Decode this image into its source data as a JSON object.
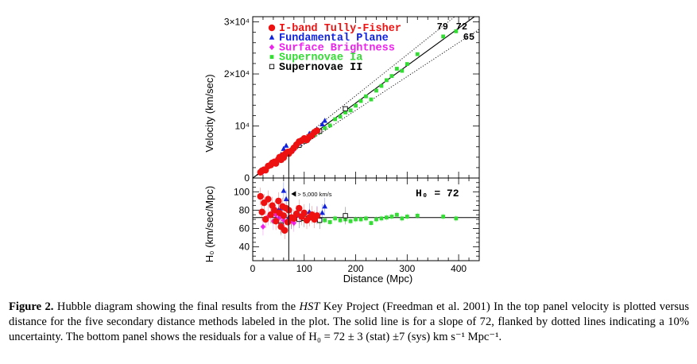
{
  "chart_data": [
    {
      "type": "scatter",
      "panel": "top",
      "xlabel": "",
      "ylabel": "Velocity (km/sec)",
      "xlim": [
        0,
        440
      ],
      "ylim": [
        0,
        31000
      ],
      "yticks": [
        {
          "v": 0,
          "t": "0"
        },
        {
          "v": 10000,
          "t": "10⁴"
        },
        {
          "v": 20000,
          "t": "2×10⁴"
        },
        {
          "v": 30000,
          "t": "3×10⁴"
        }
      ],
      "legend_position": "top-left",
      "lines": [
        {
          "label": "72",
          "slope": 72,
          "style": "solid"
        },
        {
          "label": "79",
          "slope": 79,
          "style": "dotted"
        },
        {
          "label": "65",
          "slope": 65,
          "style": "dotted"
        }
      ],
      "series": [
        {
          "name": "I-band Tully-Fisher",
          "marker": "circle",
          "color": "#ee1111",
          "points": [
            [
              15,
              1100
            ],
            [
              18,
              1400
            ],
            [
              22,
              1600
            ],
            [
              25,
              1500
            ],
            [
              30,
              2300
            ],
            [
              35,
              2500
            ],
            [
              38,
              2900
            ],
            [
              42,
              3100
            ],
            [
              45,
              2800
            ],
            [
              50,
              3600
            ],
            [
              52,
              4000
            ],
            [
              55,
              3500
            ],
            [
              58,
              4300
            ],
            [
              60,
              3900
            ],
            [
              62,
              4500
            ],
            [
              65,
              4800
            ],
            [
              68,
              5000
            ],
            [
              70,
              4700
            ],
            [
              75,
              5200
            ],
            [
              80,
              5800
            ],
            [
              85,
              6400
            ],
            [
              90,
              7000
            ],
            [
              95,
              7200
            ],
            [
              100,
              7600
            ],
            [
              105,
              7300
            ],
            [
              110,
              7900
            ],
            [
              115,
              8200
            ],
            [
              120,
              8800
            ],
            [
              125,
              9100
            ]
          ]
        },
        {
          "name": "Fundamental Plane",
          "marker": "triangle",
          "color": "#1122dd",
          "points": [
            [
              50,
              3900
            ],
            [
              55,
              4500
            ],
            [
              60,
              5600
            ],
            [
              65,
              6200
            ],
            [
              70,
              5000
            ],
            [
              90,
              6700
            ],
            [
              110,
              8500
            ],
            [
              125,
              9300
            ],
            [
              135,
              10300
            ],
            [
              140,
              11000
            ]
          ]
        },
        {
          "name": "Surface Brightness",
          "marker": "diamond",
          "color": "#ee22ee",
          "points": [
            [
              20,
              1200
            ],
            [
              30,
              2200
            ],
            [
              40,
              2700
            ],
            [
              45,
              3300
            ],
            [
              50,
              3500
            ],
            [
              55,
              4000
            ],
            [
              60,
              4100
            ],
            [
              70,
              4900
            ],
            [
              75,
              5200
            ],
            [
              80,
              5400
            ],
            [
              90,
              6700
            ]
          ]
        },
        {
          "name": "Supernovae Ia",
          "marker": "square",
          "color": "#33dd33",
          "points": [
            [
              40,
              2700
            ],
            [
              50,
              3800
            ],
            [
              60,
              4400
            ],
            [
              70,
              4900
            ],
            [
              80,
              5600
            ],
            [
              90,
              6700
            ],
            [
              100,
              7000
            ],
            [
              110,
              7800
            ],
            [
              120,
              8300
            ],
            [
              130,
              8800
            ],
            [
              140,
              9600
            ],
            [
              150,
              10100
            ],
            [
              160,
              11300
            ],
            [
              170,
              11800
            ],
            [
              180,
              12600
            ],
            [
              190,
              13000
            ],
            [
              200,
              13900
            ],
            [
              210,
              14800
            ],
            [
              220,
              15700
            ],
            [
              230,
              15100
            ],
            [
              240,
              16800
            ],
            [
              250,
              17700
            ],
            [
              260,
              18800
            ],
            [
              270,
              19600
            ],
            [
              280,
              21000
            ],
            [
              290,
              20600
            ],
            [
              300,
              21900
            ],
            [
              320,
              23800
            ],
            [
              370,
              27200
            ],
            [
              395,
              28200
            ]
          ]
        },
        {
          "name": "Supernovae II",
          "marker": "open-square",
          "color": "#000000",
          "points": [
            [
              55,
              3500
            ],
            [
              75,
              5200
            ],
            [
              90,
              6300
            ],
            [
              100,
              7100
            ],
            [
              130,
              9000
            ],
            [
              180,
              13300
            ]
          ]
        }
      ]
    },
    {
      "type": "scatter",
      "panel": "bottom",
      "xlabel": "Distance (Mpc)",
      "ylabel": "H₀ (km/sec/Mpc)",
      "xlim": [
        0,
        440
      ],
      "ylim": [
        25,
        115
      ],
      "xticks": [
        {
          "v": 0,
          "t": "0"
        },
        {
          "v": 100,
          "t": "100"
        },
        {
          "v": 200,
          "t": "200"
        },
        {
          "v": 300,
          "t": "300"
        },
        {
          "v": 400,
          "t": "400"
        }
      ],
      "yticks": [
        {
          "v": 40,
          "t": "40"
        },
        {
          "v": 60,
          "t": "60"
        },
        {
          "v": 80,
          "t": "80"
        },
        {
          "v": 100,
          "t": "100"
        }
      ],
      "reference_line": {
        "value": 72,
        "label": "H₀  =  72"
      },
      "vertical_line": {
        "x": 70
      },
      "annotation": "> 5,000 km/s",
      "series": [
        {
          "name": "I-band Tully-Fisher",
          "marker": "circle",
          "color": "#ee1111",
          "points": [
            [
              15,
              95
            ],
            [
              18,
              78
            ],
            [
              22,
              88
            ],
            [
              25,
              70
            ],
            [
              30,
              92
            ],
            [
              35,
              75
            ],
            [
              38,
              85
            ],
            [
              42,
              80
            ],
            [
              45,
              68
            ],
            [
              50,
              90
            ],
            [
              52,
              77
            ],
            [
              55,
              62
            ],
            [
              58,
              84
            ],
            [
              60,
              74
            ],
            [
              62,
              58
            ],
            [
              65,
              82
            ],
            [
              68,
              67
            ],
            [
              70,
              80
            ],
            [
              75,
              72
            ],
            [
              80,
              71
            ],
            [
              85,
              76
            ],
            [
              90,
              82
            ],
            [
              95,
              73
            ],
            [
              100,
              77
            ],
            [
              105,
              69
            ],
            [
              110,
              72
            ],
            [
              115,
              75
            ],
            [
              120,
              70
            ],
            [
              125,
              74
            ]
          ]
        },
        {
          "name": "Fundamental Plane",
          "marker": "triangle",
          "color": "#1122dd",
          "points": [
            [
              50,
              80
            ],
            [
              55,
              82
            ],
            [
              60,
              101
            ],
            [
              65,
              92
            ],
            [
              70,
              72
            ],
            [
              90,
              75
            ],
            [
              110,
              78
            ],
            [
              125,
              75
            ],
            [
              135,
              77
            ],
            [
              140,
              84
            ]
          ]
        },
        {
          "name": "Surface Brightness",
          "marker": "diamond",
          "color": "#ee22ee",
          "points": [
            [
              20,
              62
            ],
            [
              30,
              73
            ],
            [
              40,
              68
            ],
            [
              45,
              75
            ],
            [
              50,
              71
            ],
            [
              55,
              73
            ],
            [
              60,
              69
            ],
            [
              70,
              70
            ],
            [
              75,
              69
            ],
            [
              80,
              66
            ],
            [
              90,
              74
            ]
          ]
        },
        {
          "name": "Supernovae Ia",
          "marker": "square",
          "color": "#33dd33",
          "points": [
            [
              40,
              68
            ],
            [
              50,
              76
            ],
            [
              60,
              73
            ],
            [
              70,
              70
            ],
            [
              80,
              70
            ],
            [
              90,
              74
            ],
            [
              100,
              70
            ],
            [
              110,
              71
            ],
            [
              120,
              69
            ],
            [
              130,
              68
            ],
            [
              140,
              69
            ],
            [
              150,
              67
            ],
            [
              160,
              71
            ],
            [
              170,
              69
            ],
            [
              180,
              70
            ],
            [
              190,
              68
            ],
            [
              200,
              70
            ],
            [
              210,
              70
            ],
            [
              220,
              71
            ],
            [
              230,
              66
            ],
            [
              240,
              70
            ],
            [
              250,
              71
            ],
            [
              260,
              72
            ],
            [
              270,
              73
            ],
            [
              280,
              75
            ],
            [
              290,
              71
            ],
            [
              300,
              73
            ],
            [
              320,
              74
            ],
            [
              370,
              73
            ],
            [
              395,
              71
            ]
          ]
        },
        {
          "name": "Supernovae II",
          "marker": "open-square",
          "color": "#000000",
          "points": [
            [
              55,
              64
            ],
            [
              75,
              69
            ],
            [
              90,
              70
            ],
            [
              100,
              71
            ],
            [
              130,
              69
            ],
            [
              180,
              74
            ]
          ]
        }
      ]
    }
  ],
  "caption": {
    "label": "Figure 2.",
    "pre": " Hubble diagram showing the final results from the ",
    "italic": "HST",
    "post": " Key Project (Freedman et al. 2001) In the top panel velocity is plotted versus distance for the five secondary distance methods labeled in the plot. The solid line is for a slope of 72, flanked by dotted lines indicating a 10% uncertainty. The bottom panel shows the residuals for a value of H₀ = 72 ± 3 (stat) ±7 (sys) km s⁻¹ Mpc⁻¹."
  }
}
